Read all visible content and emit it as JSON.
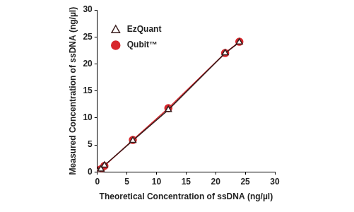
{
  "chart_data": {
    "type": "scatter",
    "x_label": "Theoretical Concentration of ssDNA (ng/µl)",
    "y_label": "Measured Concentration of ssDNA (ng/µl)",
    "xlim": [
      0,
      30
    ],
    "xticks": [
      0,
      5,
      10,
      15,
      20,
      25,
      30
    ],
    "ylim": [
      0,
      30
    ],
    "yticks": [
      0,
      5,
      10,
      15,
      20,
      25,
      30
    ],
    "grid": false,
    "legend": "top-left",
    "series": [
      {
        "name": "EzQuant",
        "color": "#3a1f1f",
        "marker": "triangle-open",
        "line_style": "solid",
        "x": [
          0.1,
          0.6,
          1.2,
          6,
          12,
          21.6,
          24
        ],
        "values": [
          0.1,
          0.5,
          1.2,
          5.8,
          11.5,
          22,
          24
        ]
      },
      {
        "name": "Qubit™",
        "color": "#d7262b",
        "marker": "circle",
        "line_style": "solid",
        "x": [
          0.1,
          0.6,
          1.2,
          6,
          12,
          21.6,
          24
        ],
        "values": [
          0.1,
          0.5,
          1.1,
          5.9,
          11.8,
          22,
          24.1
        ]
      }
    ]
  }
}
